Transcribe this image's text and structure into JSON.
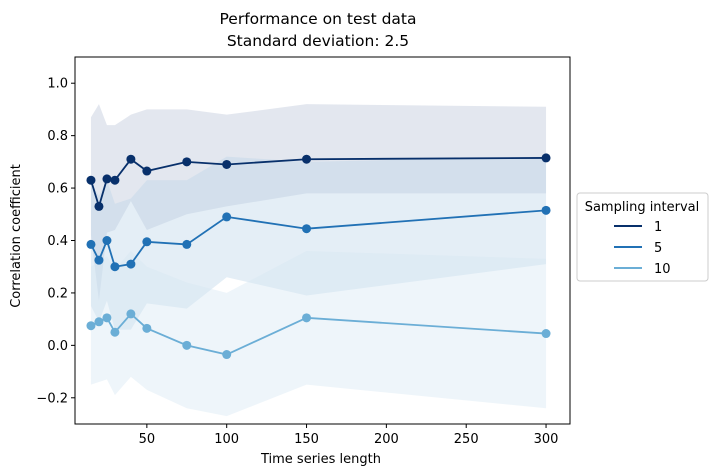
{
  "chart_data": {
    "type": "line",
    "title": "Performance on test data",
    "subtitle": "Standard deviation: 2.5",
    "xlabel": "Time series length",
    "ylabel": "Correlation coefficient",
    "xlim": [
      5,
      315
    ],
    "ylim": [
      -0.3,
      1.1
    ],
    "xticks": [
      50,
      100,
      150,
      200,
      250,
      300
    ],
    "xtick_labels": [
      "50",
      "100",
      "150",
      "200",
      "250",
      "300"
    ],
    "yticks": [
      -0.2,
      0.0,
      0.2,
      0.4,
      0.6,
      0.8,
      1.0
    ],
    "ytick_labels": [
      "−0.2",
      "0.0",
      "0.2",
      "0.4",
      "0.6",
      "0.8",
      "1.0"
    ],
    "grid": false,
    "legend_title": "Sampling interval",
    "legend_position": "outside-right",
    "x": [
      15,
      20,
      25,
      30,
      40,
      50,
      75,
      100,
      150,
      300
    ],
    "series": [
      {
        "name": "1",
        "color": "#08306b",
        "band_color": "#b8c3d8",
        "values": [
          0.63,
          0.53,
          0.635,
          0.63,
          0.71,
          0.665,
          0.7,
          0.69,
          0.71,
          0.715
        ],
        "upper": [
          0.87,
          0.92,
          0.84,
          0.84,
          0.88,
          0.9,
          0.9,
          0.88,
          0.92,
          0.91
        ],
        "lower": [
          0.42,
          0.17,
          0.43,
          0.44,
          0.55,
          0.44,
          0.5,
          0.53,
          0.58,
          0.58
        ]
      },
      {
        "name": "5",
        "color": "#2171b5",
        "band_color": "#bcd4e8",
        "values": [
          0.385,
          0.325,
          0.4,
          0.3,
          0.31,
          0.395,
          0.385,
          0.49,
          0.445,
          0.515
        ],
        "upper": [
          0.62,
          0.57,
          0.63,
          0.54,
          0.56,
          0.63,
          0.63,
          0.72,
          0.7,
          0.72
        ],
        "lower": [
          0.15,
          0.09,
          0.17,
          0.06,
          0.06,
          0.16,
          0.14,
          0.26,
          0.19,
          0.31
        ]
      },
      {
        "name": "10",
        "color": "#6baed6",
        "band_color": "#d4e6f3",
        "values": [
          0.075,
          0.09,
          0.105,
          0.05,
          0.12,
          0.065,
          0.0,
          -0.035,
          0.105,
          0.045
        ],
        "upper": [
          0.3,
          0.32,
          0.34,
          0.29,
          0.36,
          0.3,
          0.24,
          0.2,
          0.36,
          0.33
        ],
        "lower": [
          -0.15,
          -0.14,
          -0.13,
          -0.19,
          -0.12,
          -0.17,
          -0.24,
          -0.27,
          -0.15,
          -0.24
        ]
      }
    ]
  }
}
